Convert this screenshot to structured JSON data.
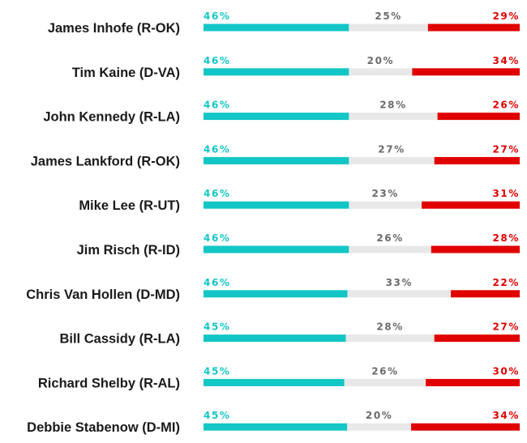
{
  "chart_data": {
    "type": "bar",
    "stacked": true,
    "orientation": "horizontal",
    "title": "",
    "xlabel": "",
    "ylabel": "",
    "categories": [
      "James Inhofe (R-OK)",
      "Tim Kaine (D-VA)",
      "John Kennedy (R-LA)",
      "James Lankford (R-OK)",
      "Mike Lee (R-UT)",
      "Jim Risch (R-ID)",
      "Chris Van Hollen (D-MD)",
      "Bill Cassidy (R-LA)",
      "Richard Shelby (R-AL)",
      "Debbie Stabenow (D-MI)"
    ],
    "series": [
      {
        "color": "#13c6c6",
        "values": [
          46,
          46,
          46,
          46,
          46,
          46,
          46,
          45,
          45,
          45
        ],
        "labels": [
          "46%",
          "46%",
          "46%",
          "46%",
          "46%",
          "46%",
          "46%",
          "45%",
          "45%",
          "45%"
        ]
      },
      {
        "color": "#e8e8e8",
        "label_color": "#6b6b6b",
        "values": [
          25,
          20,
          28,
          27,
          23,
          26,
          33,
          28,
          26,
          20
        ],
        "labels": [
          "25%",
          "20%",
          "28%",
          "27%",
          "23%",
          "26%",
          "33%",
          "28%",
          "26%",
          "20%"
        ]
      },
      {
        "color": "#e00000",
        "values": [
          29,
          34,
          26,
          27,
          31,
          28,
          22,
          27,
          30,
          34
        ],
        "labels": [
          "29%",
          "34%",
          "26%",
          "27%",
          "31%",
          "28%",
          "22%",
          "27%",
          "30%",
          "34%"
        ]
      }
    ]
  }
}
